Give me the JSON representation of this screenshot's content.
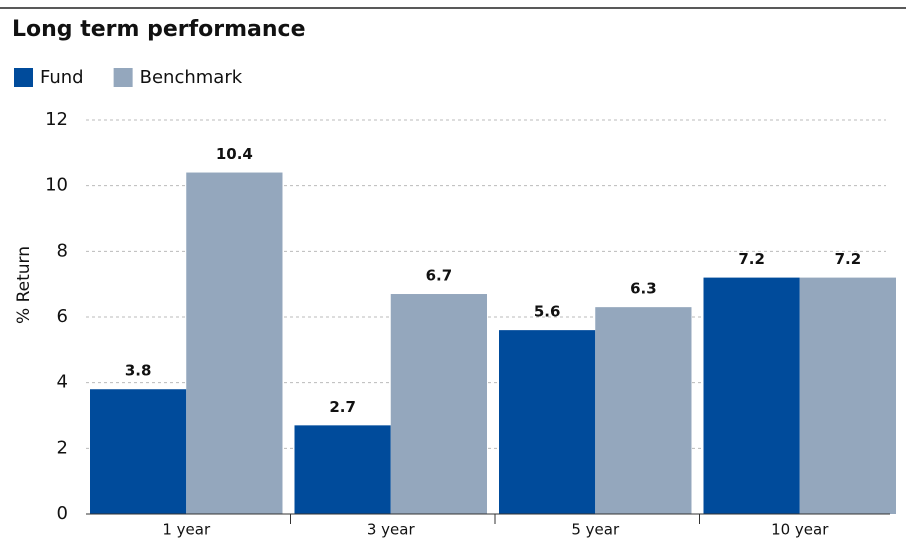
{
  "chart_data": {
    "type": "bar",
    "title": "Long term performance",
    "y_label": "% Return",
    "categories": [
      "1 year",
      "3 year",
      "5 year",
      "10 year"
    ],
    "series": [
      {
        "name": "Fund",
        "color": "#004b9b",
        "values": [
          3.8,
          2.7,
          5.6,
          7.2
        ]
      },
      {
        "name": "Benchmark",
        "color": "#94a7bd",
        "values": [
          10.4,
          6.7,
          6.3,
          7.2
        ]
      }
    ],
    "ylim": [
      0,
      12
    ],
    "yticks": [
      0,
      2,
      4,
      6,
      8,
      10,
      12
    ],
    "grid": true,
    "legend": "top-left"
  }
}
